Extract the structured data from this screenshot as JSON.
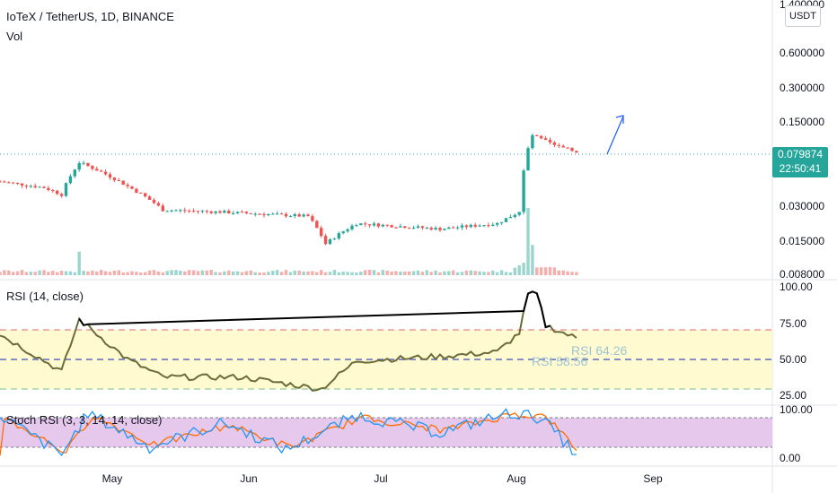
{
  "header": {
    "title": "IoTeX / TetherUS, 1D, BINANCE",
    "vol_label": "Vol",
    "currency_button": "USDT"
  },
  "colors": {
    "up": "#26a69a",
    "down": "#ef5350",
    "rsi_band": "#fff9c4",
    "stoch_band": "#e1bee7",
    "arrow": "#2962ff",
    "rsi_line": "#6b6b3a",
    "rsi_overbought_line": "#000000",
    "stoch_k": "#2196f3",
    "stoch_d": "#ff6d00",
    "price_tag": "#26a69a"
  },
  "price_pane": {
    "scale": "log",
    "price_labels": [
      "1.400000",
      "0.600000",
      "0.300000",
      "0.150000",
      "0.030000",
      "0.015000",
      "0.008000"
    ],
    "current_price": "0.079874",
    "countdown": "22:50:41"
  },
  "rsi_pane": {
    "title": "RSI (14, close)",
    "axis_labels": [
      "100.00",
      "75.00",
      "50.00",
      "25.00"
    ],
    "upper_band": 70,
    "mid_line": 50,
    "lower_band": 30,
    "annotations": [
      "RSI 58.56",
      "RSI 64.26"
    ]
  },
  "stoch_pane": {
    "title": "Stoch RSI (3, 3, 14, 14, close)",
    "axis_labels": [
      "100.00",
      "0.00"
    ],
    "upper_band": 80,
    "lower_band": 20
  },
  "x_axis": {
    "labels": [
      "May",
      "Jun",
      "Jul",
      "Aug",
      "Sep"
    ]
  },
  "chart_data": {
    "type": "candlestick",
    "symbol": "IoTeX / TetherUS, 1D, BINANCE",
    "yscale": "log",
    "ylim": [
      0.0075,
      1.4
    ],
    "x_labels": [
      "May",
      "Jun",
      "Jul",
      "Aug",
      "Sep"
    ],
    "price_anchors": [
      {
        "x": "Apr 11",
        "close": 0.045
      },
      {
        "x": "Apr 21",
        "close": 0.04
      },
      {
        "x": "Apr 25",
        "close": 0.035
      },
      {
        "x": "Apr 29",
        "close": 0.065
      },
      {
        "x": "May 10",
        "close": 0.041
      },
      {
        "x": "May 18",
        "close": 0.026
      },
      {
        "x": "May 31",
        "close": 0.025
      },
      {
        "x": "Jun 20",
        "close": 0.023
      },
      {
        "x": "Jun 24",
        "close": 0.0135
      },
      {
        "x": "Jul 1",
        "close": 0.02
      },
      {
        "x": "Jul 20",
        "close": 0.018
      },
      {
        "x": "Aug 2",
        "close": 0.02
      },
      {
        "x": "Aug 7",
        "close": 0.025
      },
      {
        "x": "Aug 9",
        "close": 0.085
      },
      {
        "x": "Aug 10",
        "close": 0.11
      },
      {
        "x": "Aug 15",
        "close": 0.09
      },
      {
        "x": "Aug 20",
        "close": 0.0799
      }
    ],
    "volume_anchors": [
      {
        "x": "Apr 29",
        "level": 0.35
      },
      {
        "x": "Aug 9",
        "level": 1.0
      },
      {
        "x": "Aug 10",
        "level": 0.45
      }
    ],
    "rsi_anchors": [
      {
        "x": "Apr 11",
        "value": 67
      },
      {
        "x": "Apr 25",
        "value": 42
      },
      {
        "x": "Apr 29",
        "value": 77
      },
      {
        "x": "May 10",
        "value": 50
      },
      {
        "x": "May 18",
        "value": 38
      },
      {
        "x": "Jun 5",
        "value": 38
      },
      {
        "x": "Jun 23",
        "value": 30
      },
      {
        "x": "Jul 1",
        "value": 49
      },
      {
        "x": "Jul 20",
        "value": 52
      },
      {
        "x": "Aug 2",
        "value": 55
      },
      {
        "x": "Aug 7",
        "value": 68
      },
      {
        "x": "Aug 9",
        "value": 94
      },
      {
        "x": "Aug 11",
        "value": 94
      },
      {
        "x": "Aug 13",
        "value": 73
      },
      {
        "x": "Aug 20",
        "value": 64.26
      }
    ],
    "rsi_labels": {
      "rsi_value": 58.56,
      "rsi_value_2": 64.26
    },
    "stoch_anchors": [
      {
        "x": "Apr 11",
        "k": 85,
        "d": 80
      },
      {
        "x": "Apr 25",
        "k": 5,
        "d": 10
      },
      {
        "x": "May 1",
        "k": 90,
        "d": 85
      },
      {
        "x": "May 15",
        "k": 20,
        "d": 25
      },
      {
        "x": "Jun 1",
        "k": 70,
        "d": 65
      },
      {
        "x": "Jun 15",
        "k": 15,
        "d": 20
      },
      {
        "x": "Jul 1",
        "k": 85,
        "d": 80
      },
      {
        "x": "Jul 20",
        "k": 50,
        "d": 55
      },
      {
        "x": "Aug 5",
        "k": 90,
        "d": 88
      },
      {
        "x": "Aug 12",
        "k": 80,
        "d": 82
      },
      {
        "x": "Aug 20",
        "k": 5,
        "d": 8
      }
    ]
  }
}
